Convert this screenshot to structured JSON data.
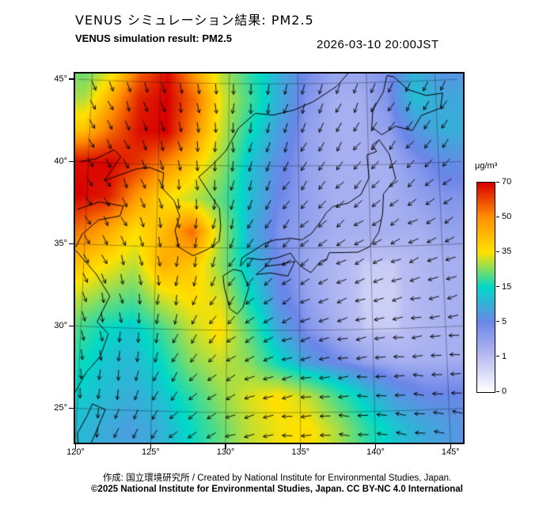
{
  "header": {
    "title_ja": "VENUS シミュレーション結果: PM2.5",
    "title_en": "VENUS simulation result: PM2.5",
    "timestamp": "2026-03-10 20:00JST"
  },
  "footer": {
    "credit": "作成:  国立環境研究所 / Created by National Institute for Environmental Studies, Japan.",
    "copyright": "©2025 National Institute for Environmental Studies, Japan. CC BY-NC 4.0 International"
  },
  "chart_data": {
    "type": "heatmap",
    "title": "VENUS simulation result: PM2.5",
    "variable": "PM2.5",
    "units_label": "μg/m³",
    "timestamp": "2026-03-10 20:00JST",
    "lon_ticks": [
      120,
      125,
      130,
      135,
      140,
      145
    ],
    "lon_tick_labels": [
      "120°",
      "125°",
      "130°",
      "135°",
      "140°",
      "145°"
    ],
    "lat_ticks": [
      45,
      40,
      35,
      30,
      25
    ],
    "lat_tick_labels": [
      "45°",
      "40°",
      "35°",
      "30°",
      "25°"
    ],
    "lon_range": [
      119.4,
      146.4
    ],
    "lat_range": [
      22.9,
      45.7
    ],
    "overlays": [
      "coastlines",
      "graticule",
      "wind-vectors"
    ],
    "colorbar": {
      "tick_values": [
        0,
        1,
        5,
        15,
        35,
        50,
        70
      ],
      "tick_labels": [
        "0",
        "1",
        "5",
        "15",
        "35",
        "50",
        "70"
      ],
      "stop_colors": [
        "#ffffff",
        "#b9bdf2",
        "#6c86e8",
        "#00d8c8",
        "#ffe100",
        "#ff9000",
        "#d80000"
      ],
      "over_color": "#c00000"
    },
    "pm25_grid": {
      "lon_start": 119.5,
      "lon_step": 2.0,
      "ncols": 14,
      "lat_start": 46.0,
      "lat_step": -2.0,
      "nrows": 12,
      "values": [
        [
          22,
          30,
          55,
          68,
          45,
          28,
          18,
          10,
          5,
          3,
          3,
          4,
          10,
          6
        ],
        [
          28,
          45,
          65,
          70,
          55,
          32,
          20,
          10,
          4,
          2,
          2,
          4,
          12,
          9
        ],
        [
          40,
          55,
          68,
          70,
          50,
          30,
          16,
          8,
          3,
          2,
          2,
          3,
          7,
          10
        ],
        [
          68,
          70,
          62,
          50,
          38,
          26,
          12,
          6,
          3,
          2,
          2,
          2,
          4,
          6
        ],
        [
          70,
          66,
          48,
          36,
          30,
          22,
          12,
          5,
          3,
          2,
          2,
          2,
          3,
          4
        ],
        [
          55,
          46,
          36,
          42,
          55,
          28,
          10,
          4,
          3,
          2,
          2,
          2,
          2,
          3
        ],
        [
          42,
          36,
          30,
          45,
          40,
          26,
          12,
          5,
          2.5,
          1.5,
          0.8,
          0.8,
          1.5,
          2
        ],
        [
          32,
          26,
          22,
          32,
          36,
          32,
          16,
          6,
          3,
          1.5,
          0.7,
          0.7,
          1.5,
          2
        ],
        [
          22,
          16,
          13,
          20,
          30,
          36,
          22,
          9,
          4,
          2,
          0.8,
          0.8,
          1.5,
          2
        ],
        [
          18,
          13,
          11,
          15,
          25,
          30,
          26,
          16,
          8,
          5,
          3,
          2,
          2,
          2
        ],
        [
          15,
          12,
          10,
          12,
          18,
          26,
          32,
          36,
          30,
          20,
          12,
          7,
          5,
          5
        ],
        [
          12,
          10,
          8,
          10,
          15,
          22,
          30,
          34,
          36,
          28,
          18,
          12,
          9,
          7
        ]
      ]
    },
    "wind_grid": {
      "lon_start": 120.0,
      "lon_step": 3.7,
      "ncols": 8,
      "lat_start": 46.0,
      "lat_step": -3.7,
      "nrows": 7,
      "angles_deg": [
        [
          70,
          75,
          80,
          90,
          100,
          105,
          110,
          110
        ],
        [
          60,
          70,
          80,
          95,
          110,
          120,
          125,
          125
        ],
        [
          55,
          65,
          85,
          105,
          125,
          135,
          140,
          140
        ],
        [
          60,
          70,
          95,
          120,
          140,
          150,
          155,
          155
        ],
        [
          70,
          85,
          110,
          140,
          155,
          162,
          168,
          168
        ],
        [
          85,
          100,
          130,
          155,
          168,
          175,
          180,
          180
        ],
        [
          95,
          115,
          145,
          165,
          178,
          185,
          190,
          190
        ]
      ]
    }
  }
}
